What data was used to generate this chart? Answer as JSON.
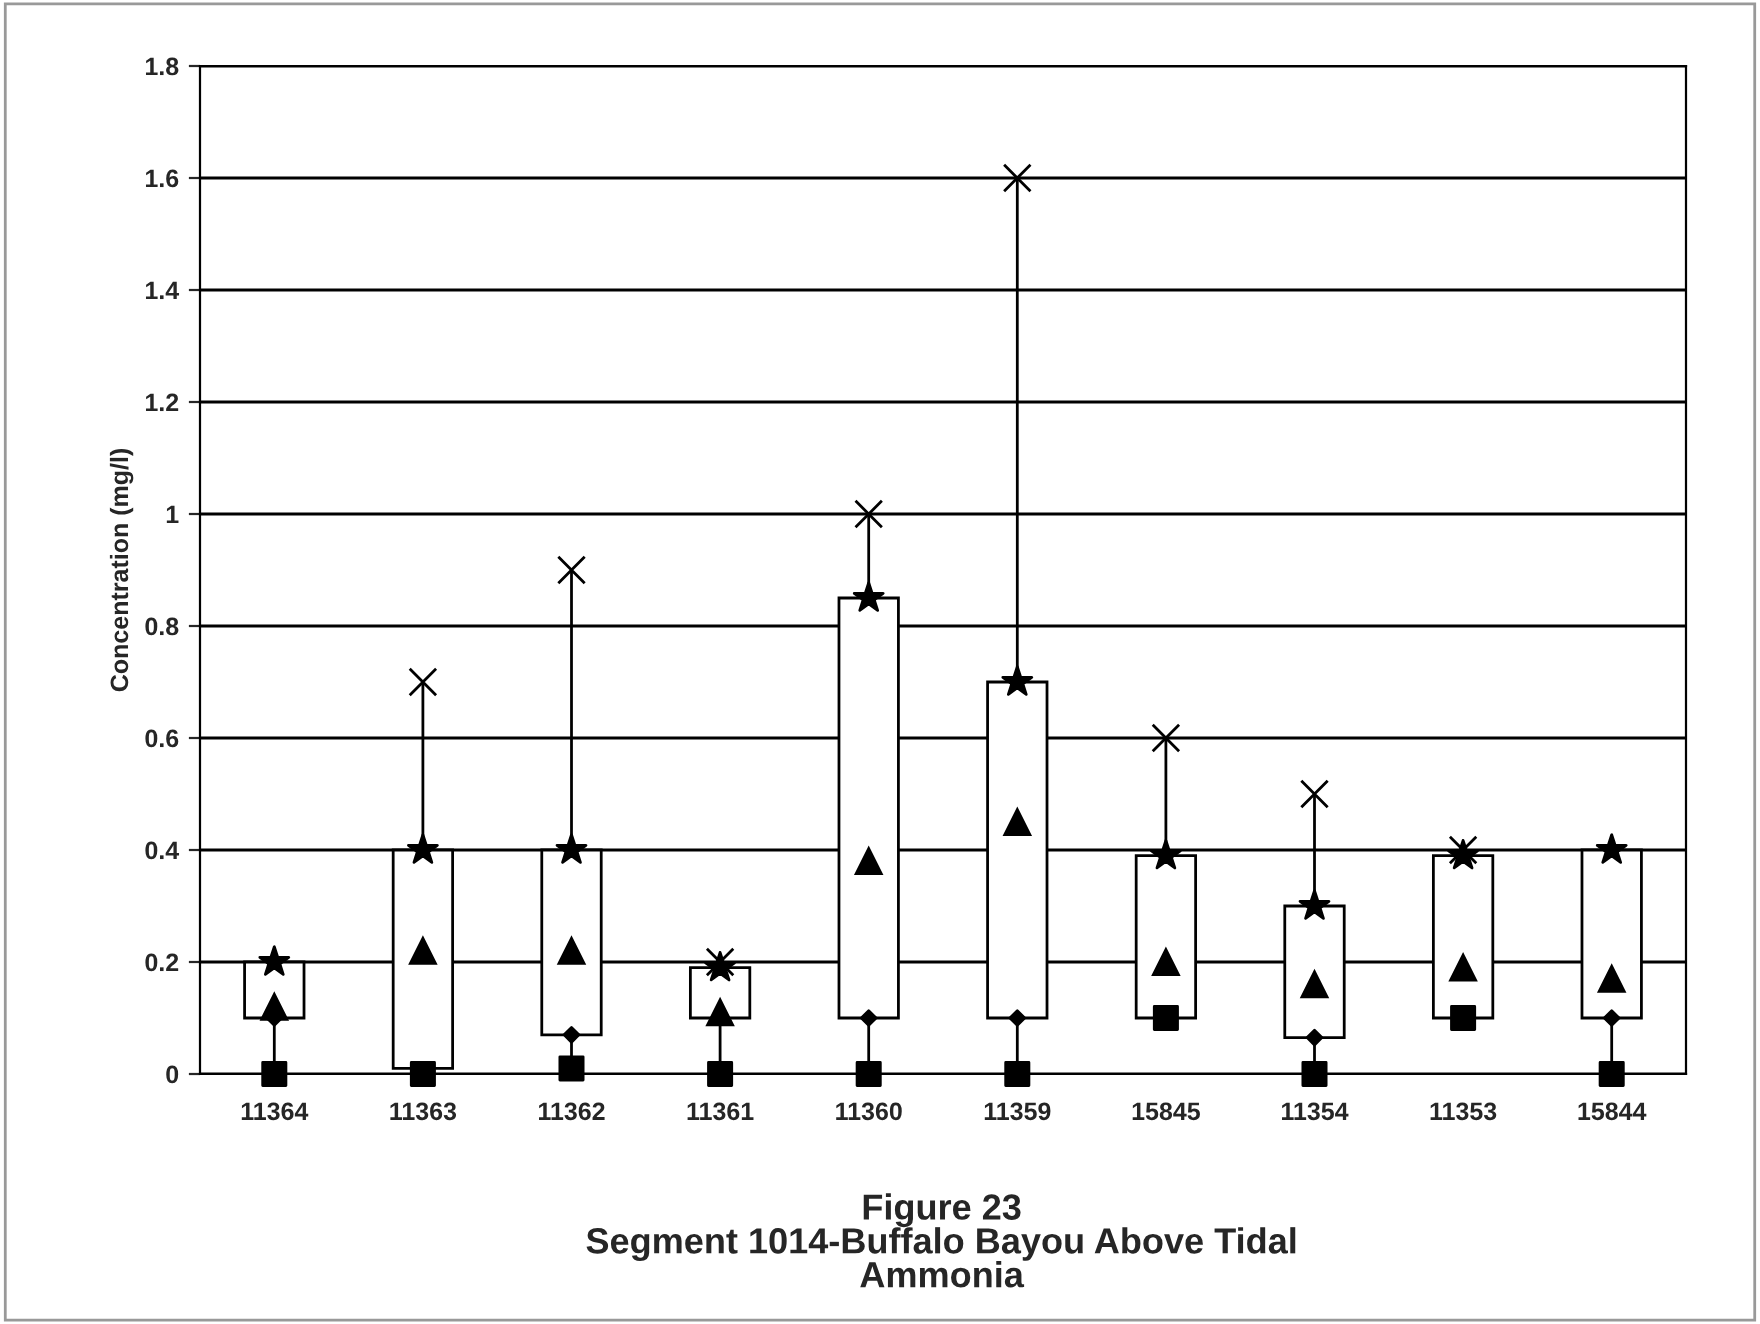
{
  "chart_data": {
    "type": "box",
    "title": "Figure 23\nSegment 1014-Buffalo Bayou Above Tidal\nAmmonia",
    "ylabel": "Concentration (mg/l)",
    "categories": [
      "11364",
      "11363",
      "11362",
      "11361",
      "11360",
      "11359",
      "15845",
      "11354",
      "11353",
      "15844"
    ],
    "boxes": [
      {
        "low": 0,
        "q1": 0.1,
        "median": 0.12,
        "q3": 0.2,
        "high": 0.2
      },
      {
        "low": 0,
        "q1": 0.01,
        "median": 0.22,
        "q3": 0.4,
        "high": 0.7
      },
      {
        "low": 0.01,
        "q1": 0.07,
        "median": 0.22,
        "q3": 0.4,
        "high": 0.9
      },
      {
        "low": 0,
        "q1": 0.1,
        "median": 0.11,
        "q3": 0.19,
        "high": 0.2
      },
      {
        "low": 0,
        "q1": 0.1,
        "median": 0.38,
        "q3": 0.85,
        "high": 1.0
      },
      {
        "low": 0,
        "q1": 0.1,
        "median": 0.45,
        "q3": 0.7,
        "high": 1.6
      },
      {
        "low": 0.1,
        "q1": 0.1,
        "median": 0.2,
        "q3": 0.39,
        "high": 0.6
      },
      {
        "low": 0,
        "q1": 0.065,
        "median": 0.16,
        "q3": 0.3,
        "high": 0.5
      },
      {
        "low": 0.1,
        "q1": 0.1,
        "median": 0.19,
        "q3": 0.39,
        "high": 0.4
      },
      {
        "low": 0,
        "q1": 0.1,
        "median": 0.17,
        "q3": 0.4,
        "high": 0.4
      }
    ],
    "series": [
      {
        "type": "scatter",
        "marker": "square",
        "color": "#000000",
        "x": [
          "11364",
          "11363",
          "11362",
          "11361",
          "11360",
          "11359",
          "15845",
          "11354",
          "11353",
          "15844"
        ],
        "values": [
          0,
          0,
          0.01,
          0,
          0,
          0,
          0.1,
          0,
          0.1,
          0
        ]
      },
      {
        "type": "scatter",
        "marker": "diamond",
        "color": "#000000",
        "x": [
          "11364",
          "11363",
          "11362",
          "11361",
          "11360",
          "11359",
          "15845",
          "11354",
          "11353",
          "15844"
        ],
        "values": [
          0.1,
          null,
          0.07,
          null,
          0.1,
          0.1,
          null,
          0.065,
          null,
          0.1
        ]
      },
      {
        "type": "scatter",
        "marker": "star",
        "color": "#000000",
        "x": [
          "11364",
          "11363",
          "11362",
          "11361",
          "11360",
          "11359",
          "15845",
          "11354",
          "11353",
          "15844"
        ],
        "values": [
          0.2,
          0.4,
          0.4,
          0.19,
          0.85,
          0.7,
          0.39,
          0.3,
          0.39,
          0.4
        ]
      },
      {
        "type": "scatter",
        "marker": "cross",
        "color": "#000000",
        "x": [
          "11364",
          "11363",
          "11362",
          "11361",
          "11360",
          "11359",
          "15845",
          "11354",
          "11353",
          "15844"
        ],
        "values": [
          null,
          0.7,
          0.9,
          0.2,
          1.0,
          1.6,
          0.6,
          0.5,
          0.4,
          null
        ]
      }
    ],
    "ylim": [
      0,
      1.8
    ],
    "yticks": [
      0,
      0.2,
      0.4,
      0.6,
      0.8,
      1,
      1.2,
      1.4,
      1.6,
      1.8
    ],
    "grid": "y",
    "legend": false
  }
}
